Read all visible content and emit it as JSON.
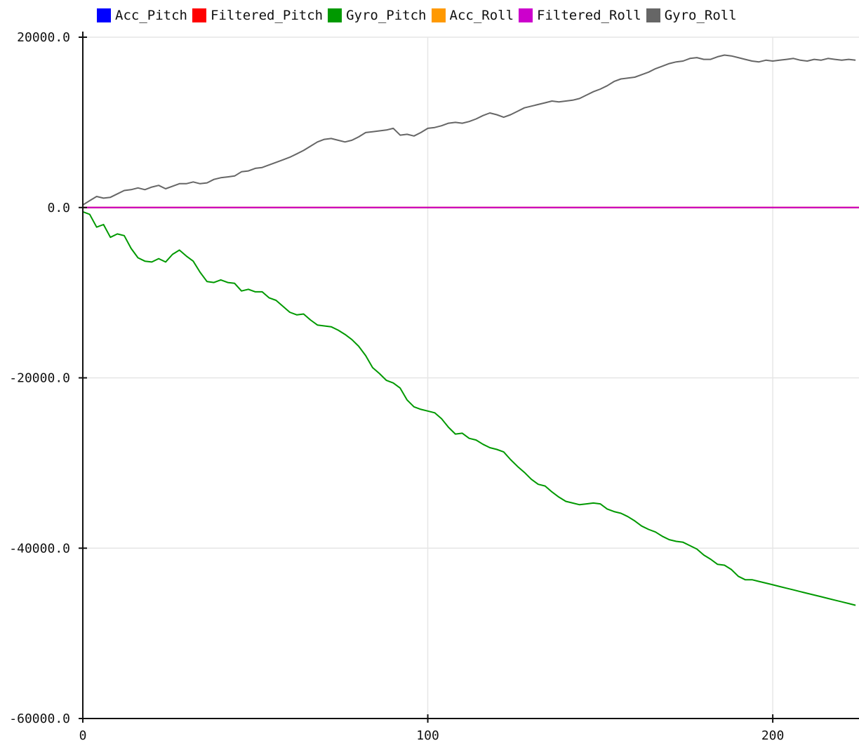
{
  "chart_data": {
    "type": "line",
    "title": "",
    "xlabel": "",
    "ylabel": "",
    "xlim": [
      0,
      225
    ],
    "ylim": [
      -60000,
      20000
    ],
    "x_ticks": [
      0,
      100,
      200
    ],
    "x_tick_labels": [
      "0",
      "100",
      "200"
    ],
    "y_ticks": [
      20000,
      0,
      -20000,
      -40000,
      -60000
    ],
    "y_tick_labels": [
      "20000.0",
      "0.0",
      "-20000.0",
      "-40000.0",
      "-60000.0"
    ],
    "grid": true,
    "legend_position": "top",
    "legend": [
      {
        "name": "Acc_Pitch",
        "color": "#0000ff"
      },
      {
        "name": "Filtered_Pitch",
        "color": "#ff0000"
      },
      {
        "name": "Gyro_Pitch",
        "color": "#009900"
      },
      {
        "name": "Acc_Roll",
        "color": "#ff9900"
      },
      {
        "name": "Filtered_Roll",
        "color": "#cc00cc"
      },
      {
        "name": "Gyro_Roll",
        "color": "#666666"
      }
    ],
    "series": [
      {
        "name": "Acc_Pitch",
        "color": "#0000ff",
        "x": [
          0,
          225
        ],
        "y": [
          0,
          0
        ]
      },
      {
        "name": "Filtered_Pitch",
        "color": "#ff0000",
        "x": [
          0,
          225
        ],
        "y": [
          0,
          0
        ]
      },
      {
        "name": "Acc_Roll",
        "color": "#ff9900",
        "x": [
          0,
          225
        ],
        "y": [
          0,
          0
        ]
      },
      {
        "name": "Filtered_Roll",
        "color": "#cc00cc",
        "x": [
          0,
          225
        ],
        "y": [
          0,
          0
        ]
      },
      {
        "name": "Gyro_Pitch",
        "color": "#009900",
        "x": [
          0,
          2,
          4,
          6,
          8,
          10,
          12,
          14,
          16,
          18,
          20,
          22,
          24,
          26,
          28,
          30,
          32,
          34,
          36,
          38,
          40,
          42,
          44,
          46,
          48,
          50,
          52,
          54,
          56,
          58,
          60,
          62,
          64,
          66,
          68,
          70,
          72,
          74,
          76,
          78,
          80,
          82,
          84,
          86,
          88,
          90,
          92,
          94,
          96,
          98,
          100,
          102,
          104,
          106,
          108,
          110,
          112,
          114,
          116,
          118,
          120,
          122,
          124,
          126,
          128,
          130,
          132,
          134,
          136,
          138,
          140,
          142,
          144,
          146,
          148,
          150,
          152,
          154,
          156,
          158,
          160,
          162,
          164,
          166,
          168,
          170,
          172,
          174,
          176,
          178,
          180,
          182,
          184,
          186,
          188,
          190,
          192,
          194,
          196,
          198,
          200,
          202,
          204,
          206,
          208,
          210,
          212,
          214,
          216,
          218,
          220,
          222,
          224
        ],
        "y": [
          -500,
          -800,
          -2300,
          -2000,
          -3500,
          -3100,
          -3300,
          -4800,
          -5900,
          -6300,
          -6400,
          -6000,
          -6400,
          -5500,
          -5000,
          -5700,
          -6300,
          -7600,
          -8700,
          -8800,
          -8500,
          -8800,
          -8900,
          -9800,
          -9600,
          -9900,
          -9900,
          -10600,
          -10900,
          -11600,
          -12300,
          -12600,
          -12500,
          -13200,
          -13800,
          -13900,
          -14000,
          -14400,
          -14900,
          -15500,
          -16300,
          -17400,
          -18800,
          -19500,
          -20300,
          -20600,
          -21200,
          -22600,
          -23400,
          -23700,
          -23900,
          -24100,
          -24800,
          -25800,
          -26600,
          -26500,
          -27100,
          -27300,
          -27800,
          -28200,
          -28400,
          -28700,
          -29600,
          -30400,
          -31100,
          -31900,
          -32500,
          -32700,
          -33400,
          -34000,
          -34500,
          -34700,
          -34900,
          -34800,
          -34700,
          -34800,
          -35400,
          -35700,
          -35900,
          -36300,
          -36800,
          -37400,
          -37800,
          -38100,
          -38600,
          -39000,
          -39200,
          -39300,
          -39700,
          -40100,
          -40800,
          -41300,
          -41900,
          -42000,
          -42500,
          -43300,
          -43700,
          -43700,
          -43900,
          -44100,
          -44300,
          -44500,
          -44700,
          -44900,
          -45100,
          -45300,
          -45500,
          -45700,
          -45900,
          -46100,
          -46300,
          -46500,
          -46700
        ]
      },
      {
        "name": "Gyro_Roll",
        "color": "#666666",
        "x": [
          0,
          2,
          4,
          6,
          8,
          10,
          12,
          14,
          16,
          18,
          20,
          22,
          24,
          26,
          28,
          30,
          32,
          34,
          36,
          38,
          40,
          42,
          44,
          46,
          48,
          50,
          52,
          54,
          56,
          58,
          60,
          62,
          64,
          66,
          68,
          70,
          72,
          74,
          76,
          78,
          80,
          82,
          84,
          86,
          88,
          90,
          92,
          94,
          96,
          98,
          100,
          102,
          104,
          106,
          108,
          110,
          112,
          114,
          116,
          118,
          120,
          122,
          124,
          126,
          128,
          130,
          132,
          134,
          136,
          138,
          140,
          142,
          144,
          146,
          148,
          150,
          152,
          154,
          156,
          158,
          160,
          162,
          164,
          166,
          168,
          170,
          172,
          174,
          176,
          178,
          180,
          182,
          184,
          186,
          188,
          190,
          192,
          194,
          196,
          198,
          200,
          202,
          204,
          206,
          208,
          210,
          212,
          214,
          216,
          218,
          220,
          222,
          224
        ],
        "y": [
          300,
          800,
          1300,
          1100,
          1200,
          1600,
          2000,
          2100,
          2300,
          2100,
          2400,
          2600,
          2200,
          2500,
          2800,
          2800,
          3000,
          2800,
          2900,
          3300,
          3500,
          3600,
          3700,
          4200,
          4300,
          4600,
          4700,
          5000,
          5300,
          5600,
          5900,
          6300,
          6700,
          7200,
          7700,
          8000,
          8100,
          7900,
          7700,
          7900,
          8300,
          8800,
          8900,
          9000,
          9100,
          9300,
          8500,
          8600,
          8400,
          8800,
          9300,
          9400,
          9600,
          9900,
          10000,
          9900,
          10100,
          10400,
          10800,
          11100,
          10900,
          10600,
          10900,
          11300,
          11700,
          11900,
          12100,
          12300,
          12500,
          12400,
          12500,
          12600,
          12800,
          13200,
          13600,
          13900,
          14300,
          14800,
          15100,
          15200,
          15300,
          15600,
          15900,
          16300,
          16600,
          16900,
          17100,
          17200,
          17500,
          17600,
          17400,
          17400,
          17700,
          17900,
          17800,
          17600,
          17400,
          17200,
          17100,
          17300,
          17200,
          17300,
          17400,
          17500,
          17300,
          17200,
          17400,
          17300,
          17500,
          17400,
          17300,
          17400,
          17300
        ]
      }
    ]
  }
}
